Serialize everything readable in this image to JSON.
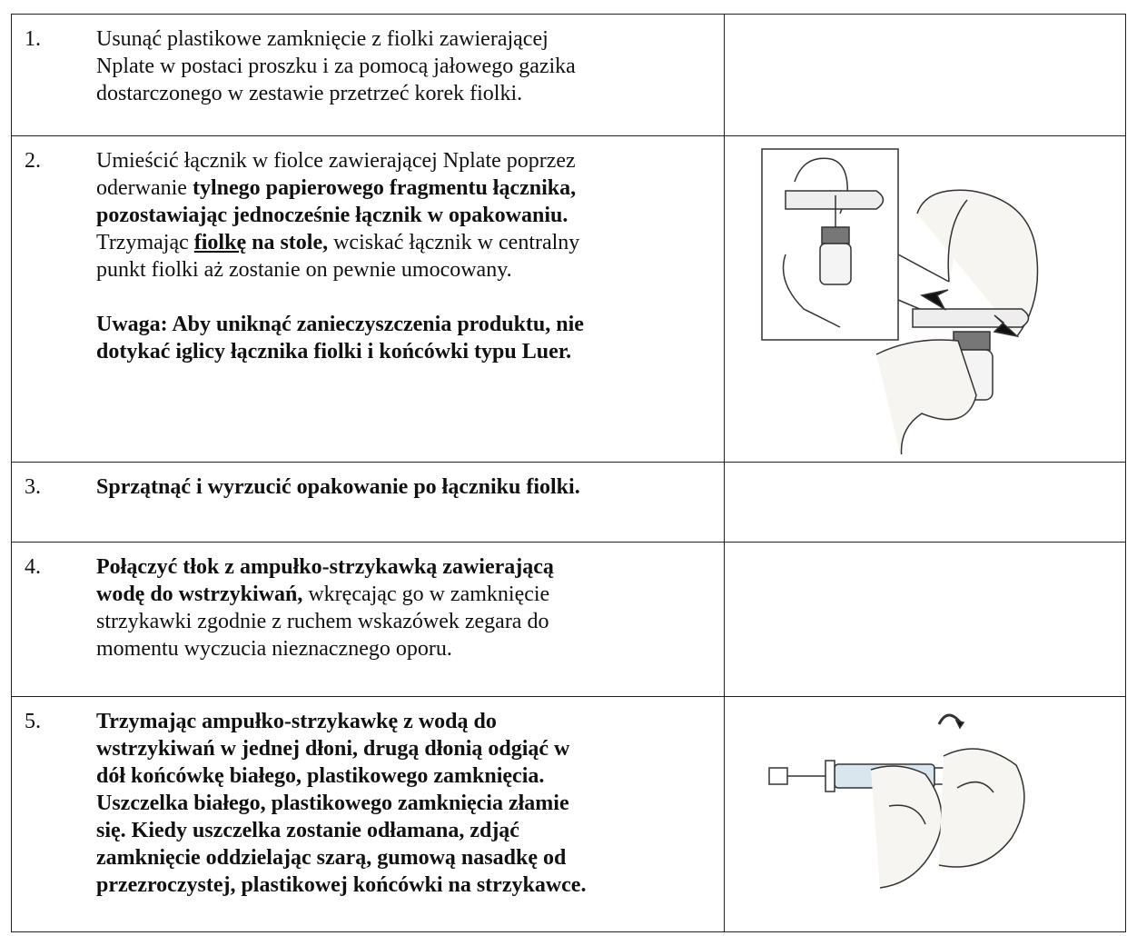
{
  "table": {
    "rows": [
      {
        "number": "1.",
        "paragraphs": [
          [
            [
              {
                "text": "Usunąć plastikowe zamknięcie z fiolki zawierającej"
              }
            ],
            [
              {
                "text": "Nplate w postaci proszku i za pomocą jałowego gazika"
              }
            ],
            [
              {
                "text": "dostarczonego w zestawie przetrzeć korek fiolki."
              }
            ]
          ]
        ]
      },
      {
        "number": "2.",
        "paragraphs": [
          [
            [
              {
                "text": "Umieścić łącznik w fiolce zawierającej Nplate poprzez"
              }
            ],
            [
              {
                "text": "oderwanie "
              },
              {
                "text": "tylnego papierowego fragmentu łącznika,",
                "bold": true
              }
            ],
            [
              {
                "text": "pozostawiając jednocześnie łącznik w opakowaniu.",
                "bold": true
              }
            ],
            [
              {
                "text": "Trzymając "
              },
              {
                "text": "fiolkę",
                "bold": true,
                "underline": true
              },
              {
                "text": " na stole,",
                "bold": true
              },
              {
                "text": " wciskać łącznik w centralny"
              }
            ],
            [
              {
                "text": "punkt fiolki aż zostanie on pewnie umocowany."
              }
            ]
          ],
          [
            [
              {
                "text": "Uwaga: Aby uniknąć zanieczyszczenia produktu, nie",
                "bold": true
              }
            ],
            [
              {
                "text": "dotykać iglicy łącznika fiolki i końcówki typu Luer.",
                "bold": true
              }
            ]
          ]
        ]
      },
      {
        "number": "3.",
        "paragraphs": [
          [
            [
              {
                "text": "Sprzątnąć i wyrzucić opakowanie po łączniku fiolki.",
                "bold": true
              }
            ]
          ]
        ]
      },
      {
        "number": "4.",
        "paragraphs": [
          [
            [
              {
                "text": "Połączyć tłok z ampułko-strzykawką zawierającą",
                "bold": true
              }
            ],
            [
              {
                "text": "wodę do wstrzykiwań,",
                "bold": true
              },
              {
                "text": " wkręcając go w zamknięcie"
              }
            ],
            [
              {
                "text": "strzykawki zgodnie z ruchem wskazówek zegara do"
              }
            ],
            [
              {
                "text": "momentu wyczucia nieznacznego oporu."
              }
            ]
          ]
        ]
      },
      {
        "number": "5.",
        "paragraphs": [
          [
            [
              {
                "text": "Trzymając ampułko-strzykawkę z wodą do",
                "bold": true
              }
            ],
            [
              {
                "text": "wstrzykiwań w jednej dłoni, drugą dłonią odgiąć w",
                "bold": true
              }
            ],
            [
              {
                "text": "dół końcówkę białego, plastikowego zamknięcia.",
                "bold": true
              }
            ],
            [
              {
                "text": "Uszczelka białego, plastikowego zamknięcia złamie",
                "bold": true
              }
            ],
            [
              {
                "text": "się. Kiedy uszczelka zostanie odłamana, zdjąć",
                "bold": true
              }
            ],
            [
              {
                "text": "zamknięcie oddzielając szarą, gumową nasadkę od",
                "bold": true
              }
            ],
            [
              {
                "text": "przezroczystej, plastikowej końcówki na strzykawce.",
                "bold": true
              }
            ]
          ]
        ]
      }
    ]
  }
}
